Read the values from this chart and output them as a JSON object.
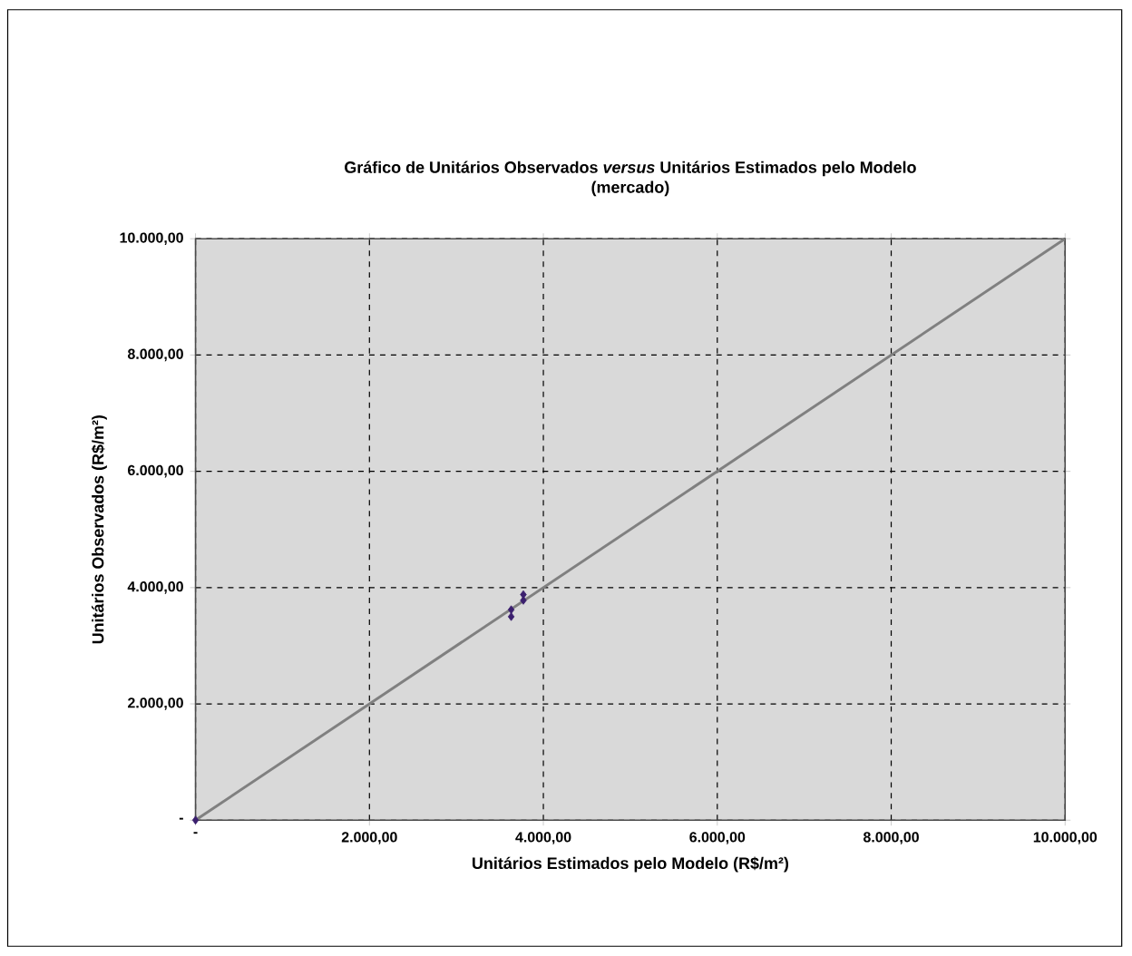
{
  "chart_data": {
    "type": "scatter",
    "title": "Gráfico de Unitários Observados *versus* Unitários Estimados pelo Modelo",
    "subtitle": "(mercado)",
    "xlabel": "Unitários Estimados pelo Modelo (R$/m²)",
    "ylabel": "Unitários Observados (R$/m²)",
    "series": [
      {
        "color": "#3b1f6e",
        "marker": "diamond",
        "x": [
          0,
          3630,
          3630,
          3770,
          3770
        ],
        "values": [
          0,
          3500,
          3620,
          3780,
          3880
        ]
      },
      {
        "type": "line",
        "color": "#808080",
        "marker": "none",
        "x": [
          0,
          10000
        ],
        "values": [
          0,
          10000
        ]
      }
    ],
    "xlim": [
      0,
      10000
    ],
    "ylim": [
      0,
      10000
    ],
    "xticks": [
      {
        "value": 0,
        "label": "-"
      },
      {
        "value": 2000,
        "label": "2.000,00"
      },
      {
        "value": 4000,
        "label": "4.000,00"
      },
      {
        "value": 6000,
        "label": "6.000,00"
      },
      {
        "value": 8000,
        "label": "8.000,00"
      },
      {
        "value": 10000,
        "label": "10.000,00"
      }
    ],
    "yticks": [
      {
        "value": 0,
        "label": "-"
      },
      {
        "value": 2000,
        "label": "2.000,00"
      },
      {
        "value": 4000,
        "label": "4.000,00"
      },
      {
        "value": 6000,
        "label": "6.000,00"
      },
      {
        "value": 8000,
        "label": "8.000,00"
      },
      {
        "value": 10000,
        "label": "10.000,00"
      }
    ],
    "grid": true
  }
}
